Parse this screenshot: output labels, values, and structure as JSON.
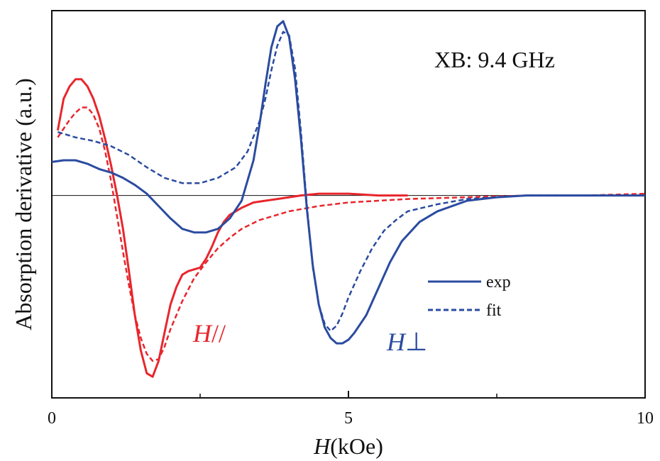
{
  "chart_data": {
    "type": "line",
    "title": "",
    "xlabel_italic": "H",
    "xlabel_rest": "(kOe)",
    "ylabel": "Absorption derivative (a.u.)",
    "annotation": "XB: 9.4 GHz",
    "xlim": [
      0,
      10
    ],
    "ylim": [
      -1.15,
      1.05
    ],
    "xticks": [
      0,
      5,
      10
    ],
    "xtick_labels": [
      "0",
      "5",
      "10"
    ],
    "zero_line": true,
    "grid": false,
    "legend_position": "right-middle",
    "legend": [
      {
        "label": "exp",
        "style": "solid"
      },
      {
        "label": "fit",
        "style": "dashed"
      }
    ],
    "colors": {
      "red": "#e8262c",
      "blue": "#2b4ba0",
      "axis": "#111111"
    },
    "series": [
      {
        "name": "H//",
        "label_italic": "H",
        "label_symbol": "//",
        "color": "#e8262c",
        "style": "solid",
        "x": [
          0.1,
          0.2,
          0.3,
          0.4,
          0.5,
          0.6,
          0.7,
          0.8,
          0.9,
          1.0,
          1.1,
          1.2,
          1.3,
          1.4,
          1.5,
          1.6,
          1.7,
          1.8,
          1.9,
          2.0,
          2.1,
          2.2,
          2.3,
          2.4,
          2.5,
          2.6,
          2.7,
          2.8,
          2.9,
          3.0,
          3.2,
          3.4,
          3.6,
          3.8,
          4.0,
          4.2,
          4.5,
          5.0,
          5.5,
          6.0
        ],
        "y": [
          0.37,
          0.55,
          0.62,
          0.66,
          0.66,
          0.62,
          0.55,
          0.45,
          0.32,
          0.17,
          0.0,
          -0.19,
          -0.43,
          -0.68,
          -0.88,
          -1.01,
          -1.03,
          -0.94,
          -0.78,
          -0.62,
          -0.52,
          -0.45,
          -0.43,
          -0.42,
          -0.41,
          -0.36,
          -0.29,
          -0.21,
          -0.15,
          -0.11,
          -0.07,
          -0.04,
          -0.03,
          -0.02,
          -0.01,
          0.0,
          0.01,
          0.01,
          0.0,
          0.0
        ]
      },
      {
        "name": "H// fit",
        "color": "#e8262c",
        "style": "dashed",
        "x": [
          0.1,
          0.2,
          0.3,
          0.4,
          0.5,
          0.6,
          0.7,
          0.8,
          0.9,
          1.0,
          1.1,
          1.2,
          1.3,
          1.4,
          1.5,
          1.6,
          1.7,
          1.8,
          1.9,
          2.0,
          2.2,
          2.4,
          2.6,
          2.8,
          3.0,
          3.2,
          3.5,
          4.0,
          4.5,
          5.0,
          5.5,
          6.0,
          7.0,
          8.0,
          9.0,
          10.0
        ],
        "y": [
          0.33,
          0.38,
          0.43,
          0.47,
          0.5,
          0.5,
          0.46,
          0.38,
          0.25,
          0.08,
          -0.12,
          -0.32,
          -0.51,
          -0.68,
          -0.81,
          -0.9,
          -0.94,
          -0.93,
          -0.86,
          -0.76,
          -0.6,
          -0.47,
          -0.38,
          -0.3,
          -0.24,
          -0.19,
          -0.14,
          -0.09,
          -0.06,
          -0.04,
          -0.03,
          -0.02,
          -0.01,
          0.0,
          0.0,
          0.01
        ]
      },
      {
        "name": "H⊥",
        "label_italic": "H",
        "label_symbol": "⊥",
        "color": "#2b4ba0",
        "style": "solid",
        "x": [
          0.0,
          0.2,
          0.4,
          0.6,
          0.8,
          1.0,
          1.2,
          1.4,
          1.6,
          1.8,
          2.0,
          2.2,
          2.4,
          2.6,
          2.8,
          3.0,
          3.2,
          3.4,
          3.5,
          3.6,
          3.7,
          3.8,
          3.9,
          4.0,
          4.1,
          4.2,
          4.3,
          4.4,
          4.5,
          4.6,
          4.7,
          4.8,
          4.9,
          5.0,
          5.1,
          5.3,
          5.5,
          5.7,
          5.9,
          6.2,
          6.5,
          7.0,
          7.5,
          8.0,
          9.0,
          10.0
        ],
        "y": [
          0.19,
          0.2,
          0.2,
          0.18,
          0.15,
          0.13,
          0.1,
          0.06,
          0.01,
          -0.06,
          -0.13,
          -0.19,
          -0.21,
          -0.21,
          -0.19,
          -0.13,
          -0.03,
          0.2,
          0.4,
          0.63,
          0.84,
          0.96,
          0.99,
          0.9,
          0.66,
          0.32,
          -0.08,
          -0.4,
          -0.62,
          -0.75,
          -0.81,
          -0.84,
          -0.84,
          -0.82,
          -0.78,
          -0.68,
          -0.53,
          -0.38,
          -0.26,
          -0.15,
          -0.09,
          -0.03,
          -0.01,
          0.0,
          0.0,
          0.0
        ]
      },
      {
        "name": "H⊥ fit",
        "color": "#2b4ba0",
        "style": "dashed",
        "x": [
          0.1,
          0.4,
          0.7,
          1.0,
          1.3,
          1.6,
          1.9,
          2.2,
          2.5,
          2.8,
          3.1,
          3.3,
          3.5,
          3.6,
          3.7,
          3.8,
          3.9,
          4.0,
          4.1,
          4.2,
          4.3,
          4.4,
          4.5,
          4.6,
          4.7,
          4.8,
          4.9,
          5.0,
          5.2,
          5.4,
          5.6,
          5.8,
          6.0,
          6.5,
          7.0,
          7.5,
          8.0,
          9.0,
          10.0
        ],
        "y": [
          0.36,
          0.33,
          0.31,
          0.28,
          0.23,
          0.16,
          0.1,
          0.07,
          0.07,
          0.1,
          0.16,
          0.25,
          0.42,
          0.55,
          0.71,
          0.85,
          0.93,
          0.91,
          0.72,
          0.36,
          -0.06,
          -0.41,
          -0.62,
          -0.73,
          -0.77,
          -0.74,
          -0.67,
          -0.58,
          -0.43,
          -0.3,
          -0.2,
          -0.14,
          -0.09,
          -0.05,
          -0.02,
          -0.01,
          0.0,
          0.0,
          0.0
        ]
      }
    ]
  }
}
